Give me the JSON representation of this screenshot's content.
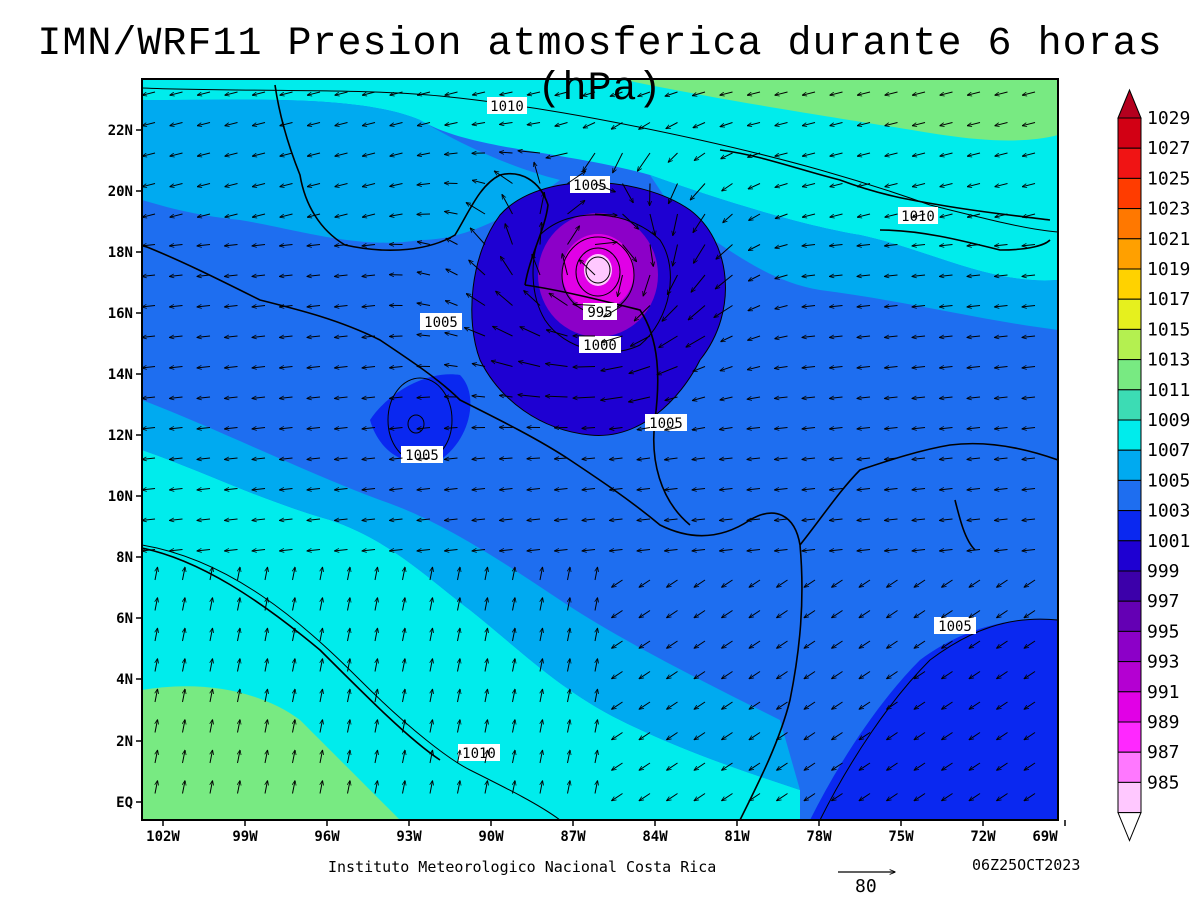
{
  "title": "IMN/WRF11 Presion atmosferica durante 6 horas (hPa)",
  "footer": {
    "credit": "Instituto Meteorologico Nacional Costa Rica",
    "timestamp": "06Z25OCT2023",
    "wind_reference": "80"
  },
  "axes": {
    "lat_labels": [
      "22N",
      "20N",
      "18N",
      "16N",
      "14N",
      "12N",
      "10N",
      "8N",
      "6N",
      "4N",
      "2N",
      "EQ"
    ],
    "lon_labels": [
      "102W",
      "99W",
      "96W",
      "93W",
      "90W",
      "87W",
      "84W",
      "81W",
      "78W",
      "75W",
      "72W",
      "69W"
    ]
  },
  "colorbar": {
    "levels": [
      "1029",
      "1027",
      "1025",
      "1023",
      "1021",
      "1019",
      "1017",
      "1015",
      "1013",
      "1011",
      "1009",
      "1007",
      "1005",
      "1003",
      "1001",
      "999",
      "997",
      "995",
      "993",
      "991",
      "989",
      "987",
      "985"
    ],
    "colors": [
      "#b4001e",
      "#d20014",
      "#f01414",
      "#ff3c00",
      "#ff7800",
      "#ffa000",
      "#ffd200",
      "#e6f01e",
      "#b4f050",
      "#78ea82",
      "#3cdcb4",
      "#00ecec",
      "#00aaf0",
      "#1e6ef0",
      "#0a28f0",
      "#1e00d2",
      "#3c00aa",
      "#6400b4",
      "#8c00c8",
      "#b400d2",
      "#e100e6",
      "#ff28ff",
      "#ff78ff",
      "#ffc8ff"
    ]
  },
  "contour_labels": [
    "1010",
    "1005",
    "1010",
    "995",
    "1005",
    "1000",
    "1005",
    "1005",
    "1005",
    "1010"
  ],
  "field_colors": {
    "high": "#78ea82",
    "upper": "#00ecec",
    "mid": "#00aaf0",
    "low": "#1e6ef0",
    "lower": "#0a28f0",
    "storm_outer": "#1e00d2",
    "storm_mid": "#8c00c8",
    "storm_inner": "#e100e6",
    "storm_core": "#ffc8ff"
  }
}
